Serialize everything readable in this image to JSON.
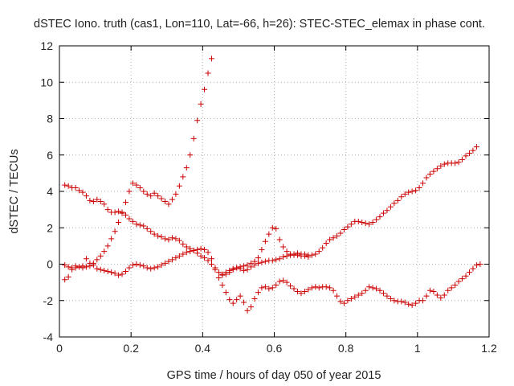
{
  "chart_data": {
    "type": "scatter",
    "title": "dSTEC Iono. truth (cas1, Lon=110, Lat=-66, h=26): STEC-STEC_elemax in phase cont.",
    "xlabel": "GPS time / hours of day 050 of year 2015",
    "ylabel": "dSTEC  / TECUs",
    "xlim": [
      0,
      1.2
    ],
    "ylim": [
      -4,
      12
    ],
    "xticks": [
      0,
      0.2,
      0.4,
      0.6,
      0.8,
      1,
      1.2
    ],
    "xtick_labels": [
      "0",
      "0.2",
      "0.4",
      "0.6",
      "0.8",
      "1",
      "1.2"
    ],
    "yticks": [
      -4,
      -2,
      0,
      2,
      4,
      6,
      8,
      10,
      12
    ],
    "ytick_labels": [
      "-4",
      "-2",
      "0",
      "2",
      "4",
      "6",
      "8",
      "10",
      "12"
    ],
    "grid": true,
    "marker": "+",
    "marker_color": "#cc0000",
    "series": [
      {
        "values": [
          [
            0.015,
            4.35
          ],
          [
            0.025,
            4.3
          ],
          [
            0.035,
            4.2
          ],
          [
            0.045,
            4.2
          ],
          [
            0.055,
            4.05
          ],
          [
            0.065,
            3.95
          ],
          [
            0.075,
            3.75
          ],
          [
            0.085,
            3.5
          ],
          [
            0.095,
            3.45
          ],
          [
            0.105,
            3.55
          ],
          [
            0.115,
            3.45
          ],
          [
            0.125,
            3.3
          ],
          [
            0.135,
            3.0
          ],
          [
            0.145,
            2.85
          ],
          [
            0.155,
            2.85
          ],
          [
            0.165,
            2.9
          ],
          [
            0.175,
            2.85
          ],
          [
            0.185,
            2.7
          ],
          [
            0.195,
            2.5
          ],
          [
            0.205,
            2.35
          ],
          [
            0.215,
            2.2
          ],
          [
            0.225,
            2.15
          ],
          [
            0.235,
            2.1
          ],
          [
            0.245,
            1.95
          ],
          [
            0.255,
            1.8
          ],
          [
            0.265,
            1.65
          ],
          [
            0.275,
            1.55
          ],
          [
            0.285,
            1.5
          ],
          [
            0.295,
            1.4
          ],
          [
            0.305,
            1.35
          ],
          [
            0.315,
            1.45
          ],
          [
            0.325,
            1.4
          ],
          [
            0.335,
            1.3
          ],
          [
            0.345,
            1.1
          ],
          [
            0.355,
            0.95
          ],
          [
            0.365,
            0.85
          ],
          [
            0.375,
            0.75
          ],
          [
            0.385,
            0.6
          ],
          [
            0.395,
            0.45
          ],
          [
            0.405,
            0.35
          ],
          [
            0.415,
            0.2
          ],
          [
            0.425,
            0.0
          ],
          [
            0.435,
            -0.2
          ],
          [
            0.445,
            -0.45
          ],
          [
            0.455,
            -0.6
          ],
          [
            0.465,
            -0.55
          ],
          [
            0.475,
            -0.45
          ],
          [
            0.485,
            -0.3
          ],
          [
            0.495,
            -0.2
          ],
          [
            0.505,
            -0.25
          ],
          [
            0.515,
            -0.35
          ],
          [
            0.525,
            -0.3
          ],
          [
            0.535,
            -0.15
          ],
          [
            0.545,
            -0.05
          ],
          [
            0.555,
            0.05
          ],
          [
            0.565,
            0.1
          ],
          [
            0.575,
            0.15
          ],
          [
            0.585,
            0.2
          ],
          [
            0.595,
            0.2
          ],
          [
            0.605,
            0.25
          ],
          [
            0.615,
            0.3
          ],
          [
            0.625,
            0.4
          ],
          [
            0.635,
            0.45
          ],
          [
            0.645,
            0.5
          ],
          [
            0.655,
            0.55
          ],
          [
            0.665,
            0.6
          ],
          [
            0.675,
            0.55
          ],
          [
            0.685,
            0.55
          ],
          [
            0.695,
            0.5
          ],
          [
            0.705,
            0.5
          ],
          [
            0.715,
            0.55
          ],
          [
            0.725,
            0.7
          ],
          [
            0.735,
            0.9
          ],
          [
            0.745,
            1.15
          ],
          [
            0.755,
            1.35
          ],
          [
            0.765,
            1.45
          ],
          [
            0.775,
            1.55
          ],
          [
            0.785,
            1.7
          ],
          [
            0.795,
            1.9
          ],
          [
            0.805,
            2.05
          ],
          [
            0.815,
            2.2
          ],
          [
            0.825,
            2.35
          ],
          [
            0.835,
            2.35
          ],
          [
            0.845,
            2.3
          ],
          [
            0.855,
            2.25
          ],
          [
            0.865,
            2.2
          ],
          [
            0.875,
            2.3
          ],
          [
            0.885,
            2.45
          ],
          [
            0.895,
            2.6
          ],
          [
            0.905,
            2.8
          ],
          [
            0.915,
            2.95
          ],
          [
            0.925,
            3.15
          ],
          [
            0.935,
            3.35
          ],
          [
            0.945,
            3.5
          ],
          [
            0.955,
            3.7
          ],
          [
            0.965,
            3.85
          ],
          [
            0.975,
            3.95
          ],
          [
            0.985,
            4.0
          ],
          [
            0.995,
            4.05
          ],
          [
            1.005,
            4.2
          ],
          [
            1.015,
            4.45
          ],
          [
            1.025,
            4.75
          ],
          [
            1.035,
            4.95
          ],
          [
            1.045,
            5.1
          ],
          [
            1.055,
            5.25
          ],
          [
            1.065,
            5.4
          ],
          [
            1.075,
            5.5
          ],
          [
            1.085,
            5.55
          ],
          [
            1.095,
            5.55
          ],
          [
            1.105,
            5.55
          ],
          [
            1.115,
            5.6
          ],
          [
            1.125,
            5.75
          ],
          [
            1.135,
            5.95
          ],
          [
            1.145,
            6.1
          ],
          [
            1.155,
            6.25
          ],
          [
            1.165,
            6.45
          ]
        ]
      },
      {
        "values": [
          [
            0.015,
            -0.85
          ],
          [
            0.025,
            -0.7
          ],
          [
            0.035,
            -0.3
          ],
          [
            0.045,
            -0.2
          ],
          [
            0.055,
            -0.15
          ],
          [
            0.065,
            -0.2
          ],
          [
            0.075,
            -0.15
          ],
          [
            0.085,
            -0.1
          ],
          [
            0.095,
            0.05
          ],
          [
            0.105,
            0.25
          ],
          [
            0.115,
            0.45
          ],
          [
            0.125,
            0.7
          ],
          [
            0.135,
            1.0
          ],
          [
            0.145,
            1.4
          ],
          [
            0.155,
            1.8
          ],
          [
            0.165,
            2.3
          ],
          [
            0.175,
            2.8
          ],
          [
            0.185,
            3.4
          ],
          [
            0.195,
            4.0
          ],
          [
            0.205,
            4.45
          ],
          [
            0.215,
            4.35
          ],
          [
            0.225,
            4.2
          ],
          [
            0.235,
            4.0
          ],
          [
            0.245,
            3.85
          ],
          [
            0.255,
            3.75
          ],
          [
            0.265,
            3.9
          ],
          [
            0.275,
            3.75
          ],
          [
            0.285,
            3.6
          ],
          [
            0.295,
            3.45
          ],
          [
            0.305,
            3.3
          ],
          [
            0.315,
            3.55
          ],
          [
            0.325,
            3.85
          ],
          [
            0.335,
            4.3
          ],
          [
            0.345,
            4.8
          ],
          [
            0.355,
            5.3
          ],
          [
            0.365,
            6.0
          ],
          [
            0.375,
            6.9
          ],
          [
            0.385,
            7.9
          ],
          [
            0.395,
            8.8
          ],
          [
            0.405,
            9.6
          ],
          [
            0.415,
            10.5
          ],
          [
            0.425,
            11.3
          ]
        ]
      },
      {
        "values": [
          [
            0.015,
            -0.05
          ],
          [
            0.025,
            -0.15
          ],
          [
            0.035,
            -0.2
          ],
          [
            0.045,
            -0.1
          ],
          [
            0.055,
            -0.15
          ],
          [
            0.065,
            -0.1
          ],
          [
            0.075,
            0.3
          ],
          [
            0.085,
            0.05
          ],
          [
            0.095,
            -0.05
          ],
          [
            0.105,
            -0.25
          ],
          [
            0.115,
            -0.3
          ],
          [
            0.125,
            -0.35
          ],
          [
            0.135,
            -0.4
          ],
          [
            0.145,
            -0.45
          ],
          [
            0.155,
            -0.5
          ],
          [
            0.165,
            -0.6
          ],
          [
            0.175,
            -0.55
          ],
          [
            0.185,
            -0.4
          ],
          [
            0.195,
            -0.2
          ],
          [
            0.205,
            -0.05
          ],
          [
            0.215,
            0.0
          ],
          [
            0.225,
            -0.05
          ],
          [
            0.235,
            -0.1
          ],
          [
            0.245,
            -0.2
          ],
          [
            0.255,
            -0.25
          ],
          [
            0.265,
            -0.2
          ],
          [
            0.275,
            -0.15
          ],
          [
            0.285,
            -0.05
          ],
          [
            0.295,
            0.05
          ],
          [
            0.305,
            0.15
          ],
          [
            0.315,
            0.25
          ],
          [
            0.325,
            0.35
          ],
          [
            0.335,
            0.45
          ],
          [
            0.345,
            0.55
          ],
          [
            0.355,
            0.65
          ],
          [
            0.365,
            0.7
          ],
          [
            0.375,
            0.75
          ],
          [
            0.385,
            0.8
          ],
          [
            0.395,
            0.85
          ],
          [
            0.405,
            0.8
          ],
          [
            0.415,
            0.65
          ],
          [
            0.425,
            0.3
          ],
          [
            0.435,
            -0.3
          ],
          [
            0.445,
            -0.75
          ],
          [
            0.455,
            -1.15
          ],
          [
            0.465,
            -1.55
          ],
          [
            0.475,
            -1.95
          ],
          [
            0.485,
            -2.15
          ],
          [
            0.495,
            -1.95
          ],
          [
            0.505,
            -1.75
          ],
          [
            0.515,
            -2.1
          ],
          [
            0.525,
            -2.55
          ],
          [
            0.535,
            -2.35
          ],
          [
            0.545,
            -1.9
          ],
          [
            0.555,
            -1.55
          ],
          [
            0.565,
            -1.3
          ],
          [
            0.575,
            -1.25
          ],
          [
            0.585,
            -1.35
          ],
          [
            0.595,
            -1.3
          ],
          [
            0.605,
            -1.15
          ],
          [
            0.615,
            -0.95
          ],
          [
            0.625,
            -0.9
          ],
          [
            0.635,
            -1.0
          ],
          [
            0.645,
            -1.2
          ],
          [
            0.655,
            -1.35
          ],
          [
            0.665,
            -1.5
          ],
          [
            0.675,
            -1.6
          ],
          [
            0.685,
            -1.5
          ],
          [
            0.695,
            -1.4
          ],
          [
            0.705,
            -1.3
          ],
          [
            0.715,
            -1.25
          ],
          [
            0.725,
            -1.3
          ],
          [
            0.735,
            -1.25
          ],
          [
            0.745,
            -1.25
          ],
          [
            0.755,
            -1.3
          ],
          [
            0.765,
            -1.45
          ],
          [
            0.775,
            -1.75
          ],
          [
            0.785,
            -2.05
          ],
          [
            0.795,
            -2.15
          ],
          [
            0.805,
            -2.0
          ],
          [
            0.815,
            -1.9
          ],
          [
            0.825,
            -1.8
          ],
          [
            0.835,
            -1.7
          ],
          [
            0.845,
            -1.6
          ],
          [
            0.855,
            -1.45
          ],
          [
            0.865,
            -1.25
          ],
          [
            0.875,
            -1.3
          ],
          [
            0.885,
            -1.35
          ],
          [
            0.895,
            -1.45
          ],
          [
            0.905,
            -1.6
          ],
          [
            0.915,
            -1.75
          ],
          [
            0.925,
            -1.9
          ],
          [
            0.935,
            -2.0
          ],
          [
            0.945,
            -2.05
          ],
          [
            0.955,
            -2.05
          ],
          [
            0.965,
            -2.1
          ],
          [
            0.975,
            -2.2
          ],
          [
            0.985,
            -2.25
          ],
          [
            0.995,
            -2.15
          ],
          [
            1.005,
            -2.0
          ],
          [
            1.015,
            -2.0
          ],
          [
            1.025,
            -1.75
          ],
          [
            1.035,
            -1.45
          ],
          [
            1.045,
            -1.5
          ],
          [
            1.055,
            -1.7
          ],
          [
            1.065,
            -1.85
          ],
          [
            1.075,
            -1.7
          ],
          [
            1.085,
            -1.45
          ],
          [
            1.095,
            -1.3
          ],
          [
            1.105,
            -1.15
          ],
          [
            1.115,
            -0.95
          ],
          [
            1.125,
            -0.8
          ],
          [
            1.135,
            -0.65
          ],
          [
            1.145,
            -0.45
          ],
          [
            1.155,
            -0.25
          ],
          [
            1.165,
            -0.05
          ],
          [
            1.175,
            0.0
          ]
        ]
      },
      {
        "values": [
          [
            0.455,
            -0.55
          ],
          [
            0.465,
            -0.45
          ],
          [
            0.475,
            -0.35
          ],
          [
            0.485,
            -0.25
          ],
          [
            0.495,
            -0.2
          ],
          [
            0.505,
            -0.15
          ],
          [
            0.515,
            -0.1
          ],
          [
            0.525,
            -0.05
          ],
          [
            0.535,
            0.05
          ],
          [
            0.545,
            0.15
          ],
          [
            0.555,
            0.35
          ],
          [
            0.565,
            0.8
          ],
          [
            0.575,
            1.25
          ],
          [
            0.585,
            1.65
          ],
          [
            0.595,
            2.0
          ],
          [
            0.605,
            1.95
          ],
          [
            0.615,
            1.35
          ],
          [
            0.625,
            0.95
          ],
          [
            0.635,
            0.7
          ],
          [
            0.645,
            0.55
          ],
          [
            0.655,
            0.5
          ],
          [
            0.665,
            0.5
          ],
          [
            0.675,
            0.45
          ],
          [
            0.685,
            0.45
          ],
          [
            0.695,
            0.4
          ]
        ]
      }
    ]
  }
}
